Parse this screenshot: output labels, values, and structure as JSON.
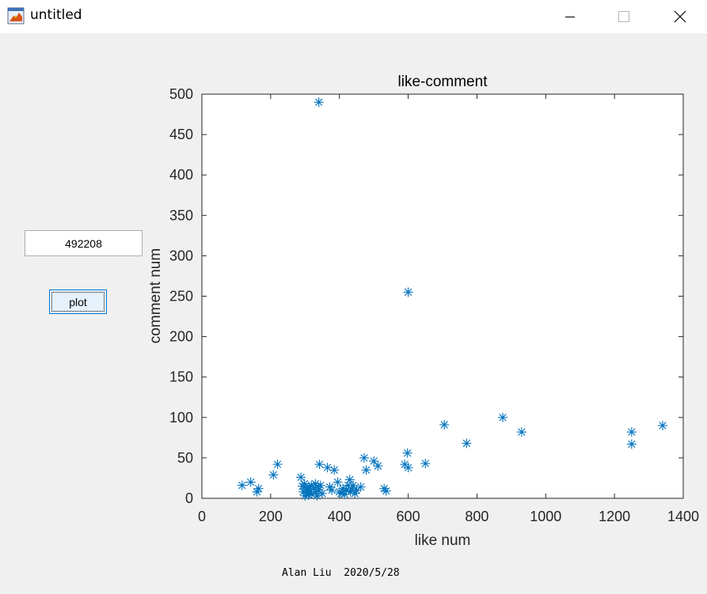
{
  "window": {
    "title": "untitled",
    "icons": {
      "app": "matlab-figure-icon",
      "minimize": "minimize-icon",
      "maximize": "maximize-icon",
      "close": "close-icon"
    }
  },
  "controls": {
    "input_value": "492208",
    "plot_label": "plot"
  },
  "footer": {
    "text": "Alan Liu  2020/5/28"
  },
  "colors": {
    "marker": "#0072bd",
    "axes_bg": "#ffffff",
    "figure_bg": "#f0f0f0"
  },
  "chart_data": {
    "type": "scatter",
    "title": "like-comment",
    "xlabel": "like num",
    "ylabel": "comment num",
    "xlim": [
      0,
      1400
    ],
    "ylim": [
      0,
      500
    ],
    "xticks": [
      0,
      200,
      400,
      600,
      800,
      1000,
      1200,
      1400
    ],
    "yticks": [
      0,
      50,
      100,
      150,
      200,
      250,
      300,
      350,
      400,
      450,
      500
    ],
    "marker": "*",
    "grid": false,
    "points": [
      [
        117,
        16
      ],
      [
        142,
        20
      ],
      [
        160,
        8
      ],
      [
        165,
        12
      ],
      [
        208,
        29
      ],
      [
        220,
        42
      ],
      [
        288,
        26
      ],
      [
        292,
        15
      ],
      [
        295,
        8
      ],
      [
        298,
        18
      ],
      [
        300,
        3
      ],
      [
        302,
        12
      ],
      [
        305,
        6
      ],
      [
        308,
        10
      ],
      [
        310,
        4
      ],
      [
        312,
        14
      ],
      [
        315,
        8
      ],
      [
        318,
        16
      ],
      [
        320,
        5
      ],
      [
        325,
        12
      ],
      [
        330,
        18
      ],
      [
        332,
        8
      ],
      [
        335,
        3
      ],
      [
        338,
        14
      ],
      [
        340,
        10
      ],
      [
        342,
        42
      ],
      [
        345,
        16
      ],
      [
        350,
        6
      ],
      [
        340,
        490
      ],
      [
        365,
        38
      ],
      [
        372,
        14
      ],
      [
        378,
        10
      ],
      [
        385,
        35
      ],
      [
        395,
        20
      ],
      [
        400,
        8
      ],
      [
        405,
        6
      ],
      [
        410,
        12
      ],
      [
        415,
        5
      ],
      [
        420,
        10
      ],
      [
        425,
        16
      ],
      [
        430,
        23
      ],
      [
        432,
        8
      ],
      [
        435,
        12
      ],
      [
        440,
        16
      ],
      [
        445,
        6
      ],
      [
        450,
        10
      ],
      [
        462,
        14
      ],
      [
        472,
        50
      ],
      [
        478,
        35
      ],
      [
        500,
        46
      ],
      [
        512,
        40
      ],
      [
        530,
        12
      ],
      [
        536,
        9
      ],
      [
        590,
        42
      ],
      [
        598,
        56
      ],
      [
        600,
        38
      ],
      [
        600,
        255
      ],
      [
        650,
        43
      ],
      [
        705,
        91
      ],
      [
        770,
        68
      ],
      [
        875,
        100
      ],
      [
        930,
        82
      ],
      [
        1250,
        82
      ],
      [
        1250,
        67
      ],
      [
        1340,
        90
      ]
    ]
  }
}
